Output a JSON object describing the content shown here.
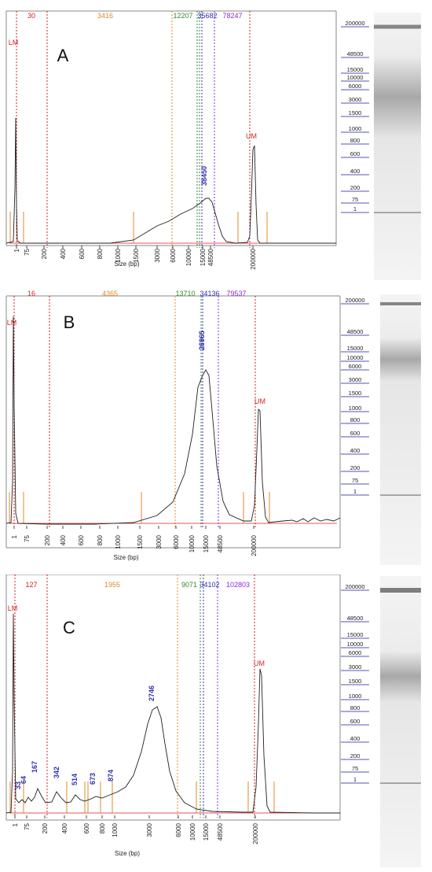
{
  "colors": {
    "red": "#d62020",
    "orange": "#e08a2a",
    "green": "#2e8b2e",
    "blue": "#3030b0",
    "purple": "#8a2be2",
    "trace": "#202020",
    "ladder_label": "#1a1aa0"
  },
  "chart_data": [
    {
      "type": "line",
      "panel_letter": "A",
      "xlabel": "Size (bp)",
      "x_ticks": [
        "1",
        "75",
        "200",
        "400",
        "600",
        "800",
        "1000",
        "1500",
        "3000",
        "6000",
        "10000",
        "15000",
        "48500",
        "200000"
      ],
      "markers": [
        {
          "label": "LM",
          "color": "red",
          "x": "1"
        },
        {
          "label": "UM",
          "color": "red",
          "x": "200000"
        }
      ],
      "top_values": [
        {
          "value": "30",
          "color": "red"
        },
        {
          "value": "3416",
          "color": "orange"
        },
        {
          "value": "12207",
          "color": "green"
        },
        {
          "value": "35682",
          "color": "blue"
        },
        {
          "value": "78247",
          "color": "purple"
        }
      ],
      "peak_labels": [
        "38450"
      ],
      "ladder": [
        "200000",
        "48500",
        "15000",
        "10000",
        "6000",
        "3000",
        "1500",
        "1000",
        "800",
        "600",
        "400",
        "200",
        "75",
        "1"
      ]
    },
    {
      "type": "line",
      "panel_letter": "B",
      "xlabel": "Size (bp)",
      "x_ticks": [
        "1",
        "75",
        "200",
        "400",
        "600",
        "800",
        "1000",
        "1500",
        "3000",
        "6000",
        "10000",
        "15000",
        "48500",
        "200000"
      ],
      "markers": [
        {
          "label": "LM",
          "color": "red",
          "x": "1"
        },
        {
          "label": "UM",
          "color": "red",
          "x": "200000"
        }
      ],
      "top_values": [
        {
          "value": "16",
          "color": "red"
        },
        {
          "value": "4365",
          "color": "orange"
        },
        {
          "value": "13710",
          "color": "green"
        },
        {
          "value": "34136",
          "color": "blue"
        },
        {
          "value": "79537",
          "color": "purple"
        }
      ],
      "peak_labels": [
        "26965"
      ],
      "ladder": [
        "200000",
        "48500",
        "15000",
        "10000",
        "6000",
        "3000",
        "1500",
        "1000",
        "800",
        "600",
        "400",
        "200",
        "75",
        "1"
      ]
    },
    {
      "type": "line",
      "panel_letter": "C",
      "xlabel": "Size (bp)",
      "x_ticks": [
        "1",
        "75",
        "200",
        "400",
        "600",
        "800",
        "1000",
        "3000",
        "6000",
        "10000",
        "15000",
        "48500",
        "200000"
      ],
      "markers": [
        {
          "label": "LM",
          "color": "red",
          "x": "1"
        },
        {
          "label": "UM",
          "color": "red",
          "x": "200000"
        }
      ],
      "top_values": [
        {
          "value": "127",
          "color": "red"
        },
        {
          "value": "1955",
          "color": "orange"
        },
        {
          "value": "9071",
          "color": "green"
        },
        {
          "value": "34102",
          "color": "blue"
        },
        {
          "value": "102803",
          "color": "purple"
        }
      ],
      "peak_labels": [
        "33",
        "64",
        "167",
        "342",
        "514",
        "673",
        "874",
        "2746"
      ],
      "ladder": [
        "200000",
        "48500",
        "15000",
        "10000",
        "6000",
        "3000",
        "1500",
        "1000",
        "800",
        "600",
        "400",
        "200",
        "75",
        "1"
      ]
    }
  ]
}
